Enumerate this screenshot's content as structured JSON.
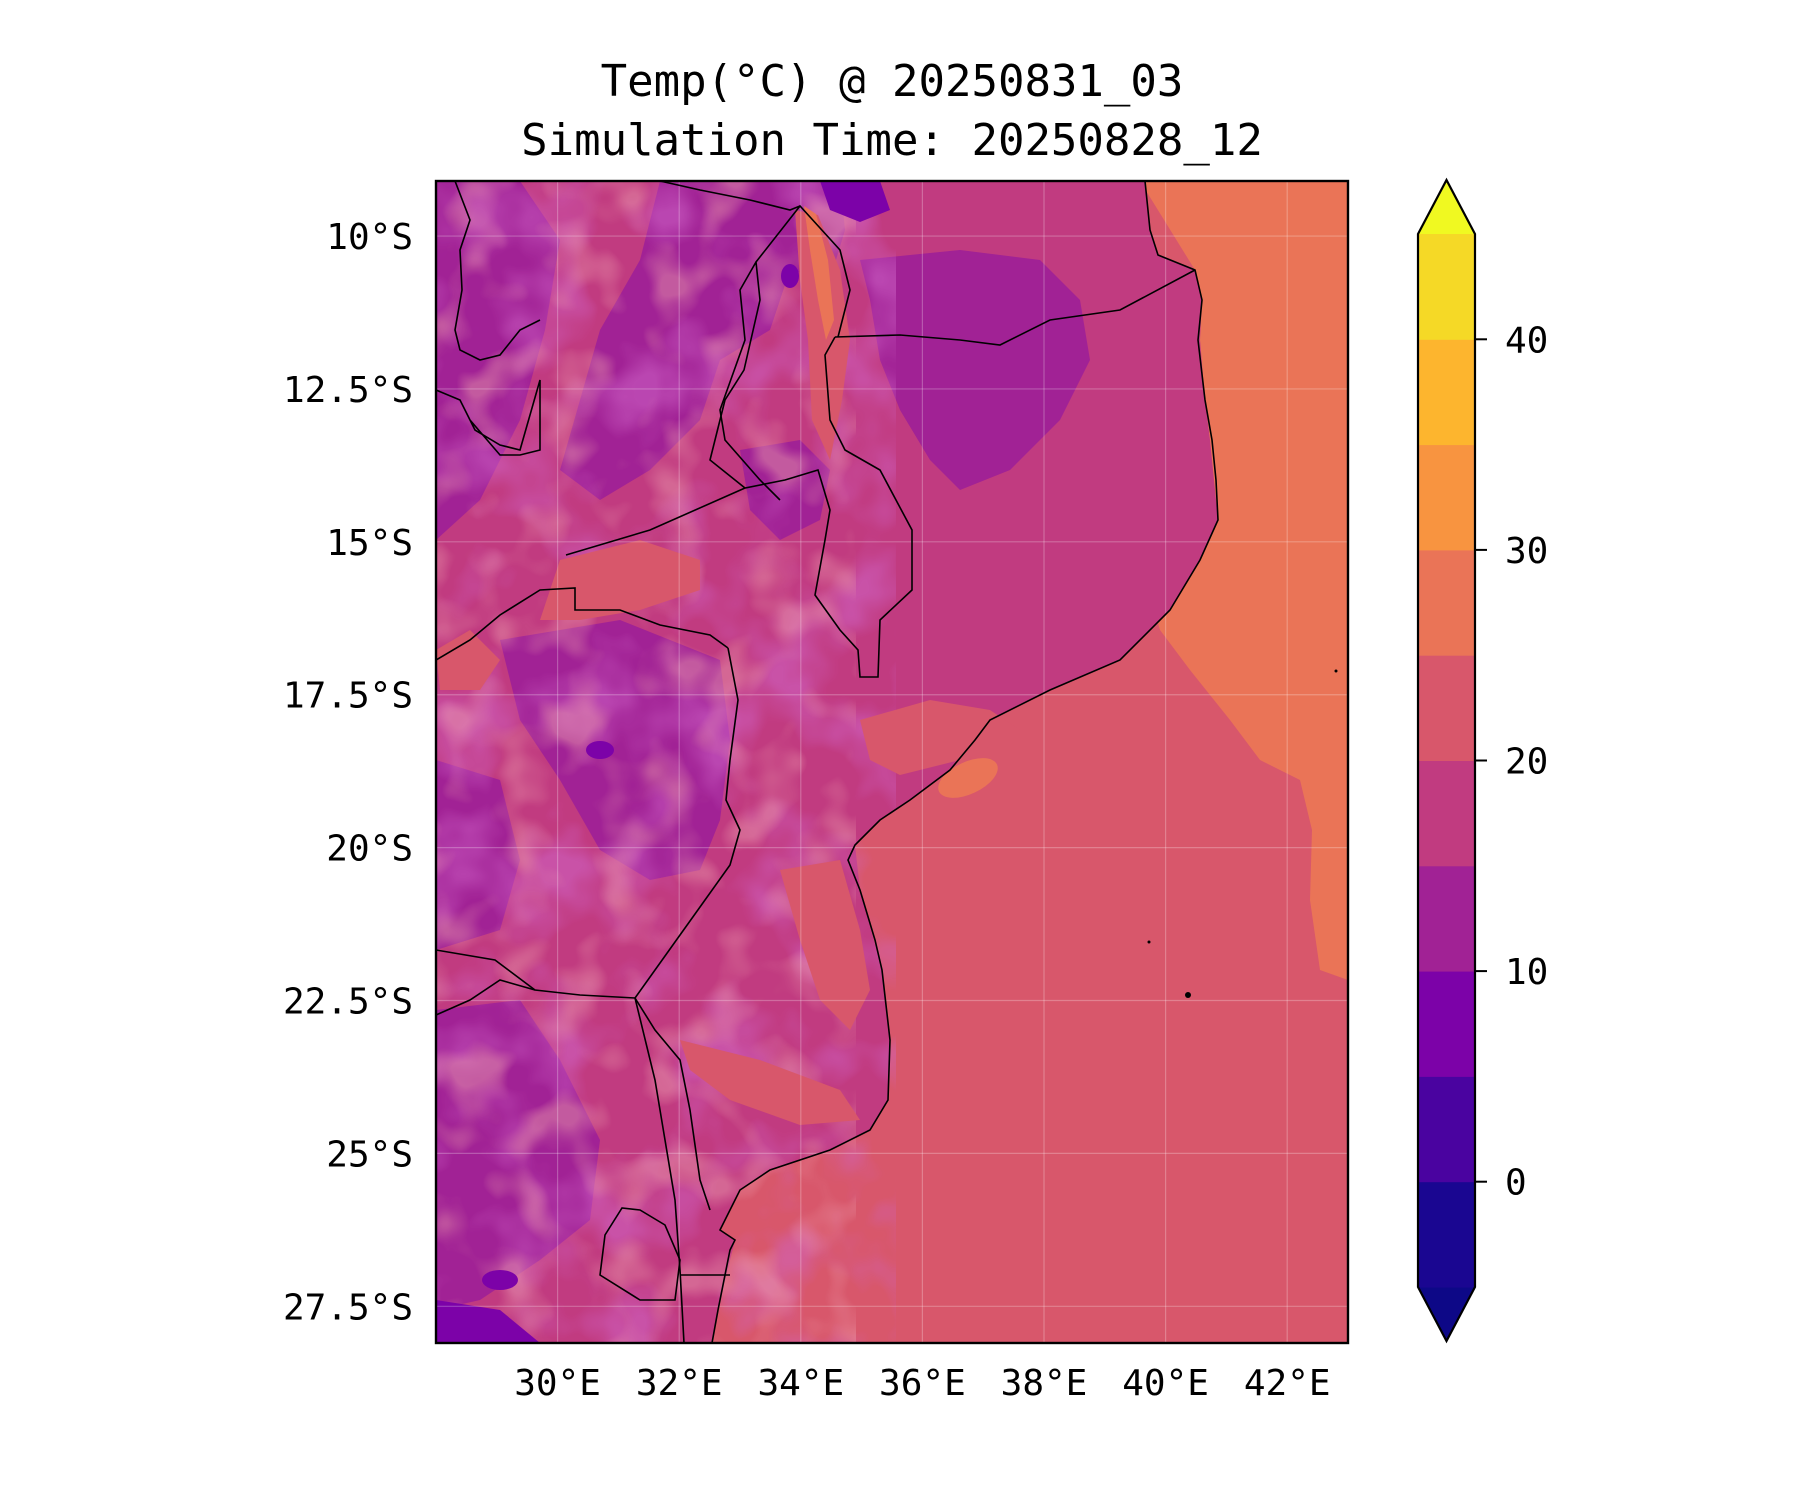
{
  "title": {
    "line1": "Temp(°C) @ 20250831_03",
    "line2": "Simulation Time: 20250828_12"
  },
  "map": {
    "variable": "Temp",
    "units": "°C",
    "lon_range": [
      28.0,
      43.0
    ],
    "lat_range": [
      -28.1,
      -9.1
    ],
    "lon_ticks": [
      30,
      32,
      34,
      36,
      38,
      40,
      42
    ],
    "lon_tick_labels": [
      "30°E",
      "32°E",
      "34°E",
      "36°E",
      "38°E",
      "40°E",
      "42°E"
    ],
    "lat_ticks": [
      -10,
      -12.5,
      -15,
      -17.5,
      -20,
      -22.5,
      -25,
      -27.5
    ],
    "lat_tick_labels": [
      "10°S",
      "12.5°S",
      "15°S",
      "17.5°S",
      "20°S",
      "22.5°S",
      "25°S",
      "27.5°S"
    ],
    "gridlines": true
  },
  "colorbar": {
    "levels": [
      -5,
      0,
      5,
      10,
      15,
      20,
      25,
      30,
      35,
      40,
      45
    ],
    "tick_values": [
      0,
      10,
      20,
      30,
      40
    ],
    "tick_labels": [
      "0",
      "10",
      "20",
      "30",
      "40"
    ],
    "colors": [
      "#1a0691",
      "#4a03a0",
      "#7c02a8",
      "#a12295",
      "#c13b80",
      "#d8576b",
      "#ea7457",
      "#f89440",
      "#fdb52e",
      "#f5d926"
    ],
    "under_color": "#0d0887",
    "over_color": "#f0f921",
    "extend": "both"
  }
}
